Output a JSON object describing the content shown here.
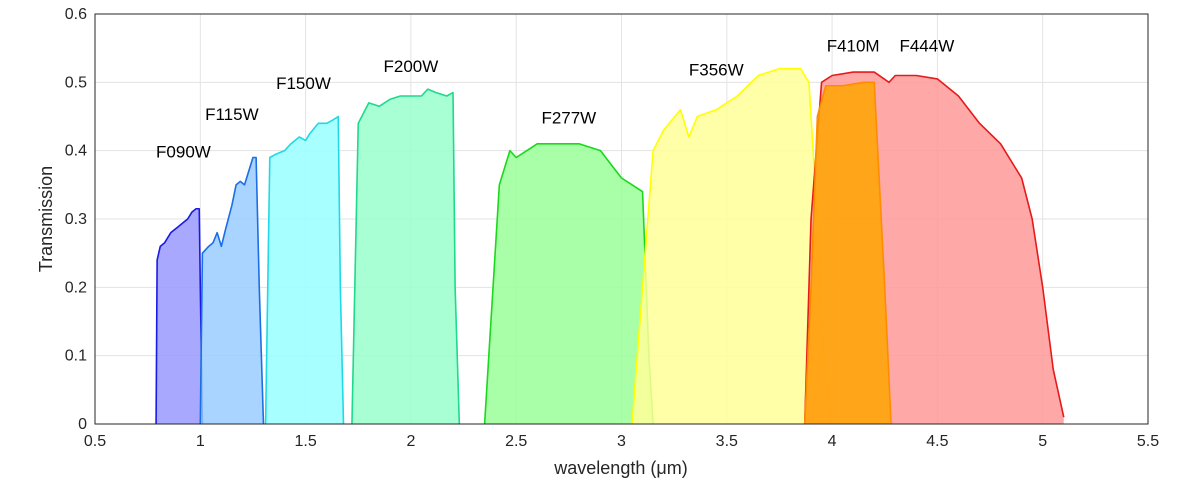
{
  "chart_data": {
    "type": "area",
    "title": "",
    "xlabel": "wavelength (μm)",
    "ylabel": "Transmission",
    "xlim": [
      0.5,
      5.5
    ],
    "ylim": [
      0,
      0.6
    ],
    "xticks": [
      0.5,
      1,
      1.5,
      2,
      2.5,
      3,
      3.5,
      4,
      4.5,
      5,
      5.5
    ],
    "xtick_labels": [
      "0.5",
      "1",
      "1.5",
      "2",
      "2.5",
      "3",
      "3.5",
      "4",
      "4.5",
      "5",
      "5.5"
    ],
    "yticks": [
      0,
      0.1,
      0.2,
      0.3,
      0.4,
      0.5,
      0.6
    ],
    "ytick_labels": [
      "0",
      "0.1",
      "0.2",
      "0.3",
      "0.4",
      "0.5",
      "0.6"
    ],
    "grid": true,
    "legend": "none",
    "series": [
      {
        "name": "F090W",
        "line_color": "#1a1ae6",
        "fill_color": "#9999ff",
        "label_x": 0.92,
        "label_y": 0.39,
        "points": [
          [
            0.79,
            0
          ],
          [
            0.795,
            0.24
          ],
          [
            0.81,
            0.26
          ],
          [
            0.83,
            0.265
          ],
          [
            0.86,
            0.28
          ],
          [
            0.88,
            0.285
          ],
          [
            0.9,
            0.29
          ],
          [
            0.92,
            0.295
          ],
          [
            0.94,
            0.3
          ],
          [
            0.96,
            0.31
          ],
          [
            0.98,
            0.315
          ],
          [
            0.995,
            0.315
          ],
          [
            1.0,
            0.2
          ],
          [
            1.01,
            0
          ]
        ]
      },
      {
        "name": "F115W",
        "line_color": "#1a6fe6",
        "fill_color": "#99ccff",
        "label_x": 1.15,
        "label_y": 0.445,
        "points": [
          [
            1.0,
            0
          ],
          [
            1.01,
            0.25
          ],
          [
            1.04,
            0.26
          ],
          [
            1.06,
            0.265
          ],
          [
            1.08,
            0.28
          ],
          [
            1.1,
            0.26
          ],
          [
            1.12,
            0.285
          ],
          [
            1.15,
            0.32
          ],
          [
            1.17,
            0.35
          ],
          [
            1.19,
            0.355
          ],
          [
            1.21,
            0.35
          ],
          [
            1.23,
            0.37
          ],
          [
            1.25,
            0.39
          ],
          [
            1.265,
            0.39
          ],
          [
            1.28,
            0.2
          ],
          [
            1.3,
            0
          ]
        ]
      },
      {
        "name": "F150W",
        "line_color": "#22d8e6",
        "fill_color": "#99ffff",
        "label_x": 1.49,
        "label_y": 0.49,
        "points": [
          [
            1.31,
            0
          ],
          [
            1.33,
            0.39
          ],
          [
            1.36,
            0.395
          ],
          [
            1.4,
            0.4
          ],
          [
            1.43,
            0.41
          ],
          [
            1.47,
            0.42
          ],
          [
            1.5,
            0.415
          ],
          [
            1.52,
            0.425
          ],
          [
            1.56,
            0.44
          ],
          [
            1.6,
            0.44
          ],
          [
            1.63,
            0.445
          ],
          [
            1.655,
            0.45
          ],
          [
            1.665,
            0.2
          ],
          [
            1.68,
            0
          ]
        ]
      },
      {
        "name": "F200W",
        "line_color": "#1fd98c",
        "fill_color": "#99ffcc",
        "label_x": 2.0,
        "label_y": 0.515,
        "points": [
          [
            1.72,
            0
          ],
          [
            1.75,
            0.44
          ],
          [
            1.8,
            0.47
          ],
          [
            1.85,
            0.465
          ],
          [
            1.9,
            0.475
          ],
          [
            1.95,
            0.48
          ],
          [
            2.0,
            0.48
          ],
          [
            2.05,
            0.48
          ],
          [
            2.08,
            0.49
          ],
          [
            2.12,
            0.485
          ],
          [
            2.17,
            0.48
          ],
          [
            2.2,
            0.485
          ],
          [
            2.21,
            0.2
          ],
          [
            2.23,
            0
          ]
        ]
      },
      {
        "name": "F277W",
        "line_color": "#1ad91a",
        "fill_color": "#99ff99",
        "label_x": 2.75,
        "label_y": 0.44,
        "points": [
          [
            2.35,
            0
          ],
          [
            2.42,
            0.35
          ],
          [
            2.47,
            0.4
          ],
          [
            2.5,
            0.39
          ],
          [
            2.55,
            0.4
          ],
          [
            2.6,
            0.41
          ],
          [
            2.7,
            0.41
          ],
          [
            2.8,
            0.41
          ],
          [
            2.9,
            0.4
          ],
          [
            2.95,
            0.38
          ],
          [
            3.0,
            0.36
          ],
          [
            3.05,
            0.35
          ],
          [
            3.1,
            0.34
          ],
          [
            3.13,
            0.1
          ],
          [
            3.15,
            0
          ]
        ]
      },
      {
        "name": "F356W",
        "line_color": "#ffff00",
        "fill_color": "#ffff99",
        "label_x": 3.45,
        "label_y": 0.51,
        "points": [
          [
            3.05,
            0
          ],
          [
            3.1,
            0.2
          ],
          [
            3.15,
            0.4
          ],
          [
            3.2,
            0.43
          ],
          [
            3.28,
            0.46
          ],
          [
            3.32,
            0.42
          ],
          [
            3.36,
            0.45
          ],
          [
            3.45,
            0.46
          ],
          [
            3.55,
            0.48
          ],
          [
            3.65,
            0.51
          ],
          [
            3.75,
            0.52
          ],
          [
            3.85,
            0.52
          ],
          [
            3.89,
            0.5
          ],
          [
            3.93,
            0.3
          ],
          [
            3.96,
            0.1
          ],
          [
            4.0,
            0
          ]
        ]
      },
      {
        "name": "F444W",
        "line_color": "#e61a1a",
        "fill_color": "#ff9999",
        "label_x": 4.45,
        "label_y": 0.545,
        "points": [
          [
            3.87,
            0
          ],
          [
            3.9,
            0.3
          ],
          [
            3.95,
            0.5
          ],
          [
            4.0,
            0.51
          ],
          [
            4.1,
            0.515
          ],
          [
            4.2,
            0.515
          ],
          [
            4.27,
            0.5
          ],
          [
            4.3,
            0.51
          ],
          [
            4.4,
            0.51
          ],
          [
            4.5,
            0.505
          ],
          [
            4.6,
            0.48
          ],
          [
            4.7,
            0.44
          ],
          [
            4.8,
            0.41
          ],
          [
            4.9,
            0.36
          ],
          [
            4.95,
            0.3
          ],
          [
            5.0,
            0.2
          ],
          [
            5.05,
            0.08
          ],
          [
            5.1,
            0.01
          ]
        ]
      },
      {
        "name": "F410M",
        "line_color": "#ff8c00",
        "fill_color": "#ffa500",
        "label_x": 4.1,
        "label_y": 0.545,
        "points": [
          [
            3.87,
            0
          ],
          [
            3.9,
            0.2
          ],
          [
            3.93,
            0.45
          ],
          [
            3.97,
            0.495
          ],
          [
            4.05,
            0.495
          ],
          [
            4.15,
            0.5
          ],
          [
            4.2,
            0.5
          ],
          [
            4.25,
            0.2
          ],
          [
            4.28,
            0
          ]
        ]
      }
    ]
  }
}
